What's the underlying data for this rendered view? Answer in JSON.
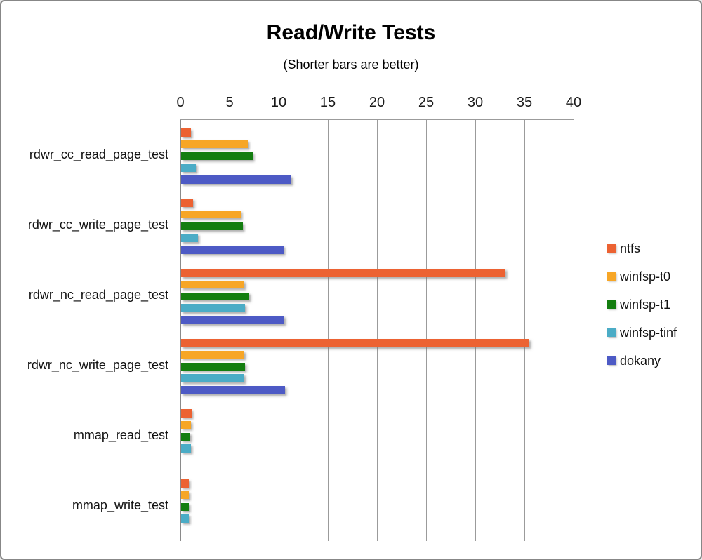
{
  "window": {
    "background": "#ffffff",
    "border_color": "#878787"
  },
  "chart_data": {
    "type": "bar",
    "orientation": "horizontal",
    "title": "Read/Write Tests",
    "subtitle": "(Shorter bars are better)",
    "xlabel": "",
    "ylabel": "",
    "xlim": [
      0,
      40
    ],
    "xticks": [
      0,
      5,
      10,
      15,
      20,
      25,
      30,
      35,
      40
    ],
    "grid": "vertical",
    "grid_color": "#9b9b9b",
    "legend_position": "right",
    "categories": [
      "rdwr_cc_read_page_test",
      "rdwr_cc_write_page_test",
      "rdwr_nc_read_page_test",
      "rdwr_nc_write_page_test",
      "mmap_read_test",
      "mmap_write_test"
    ],
    "series": [
      {
        "name": "ntfs",
        "color": "#EC6232",
        "values": [
          1.0,
          1.2,
          33.0,
          35.4,
          1.05,
          0.8
        ]
      },
      {
        "name": "winfsp-t0",
        "color": "#F7A626",
        "values": [
          6.8,
          6.1,
          6.4,
          6.4,
          1.0,
          0.8
        ]
      },
      {
        "name": "winfsp-t1",
        "color": "#147E10",
        "values": [
          7.3,
          6.3,
          6.9,
          6.5,
          0.9,
          0.75
        ]
      },
      {
        "name": "winfsp-tinf",
        "color": "#4BACC6",
        "values": [
          1.5,
          1.7,
          6.5,
          6.4,
          1.0,
          0.8
        ]
      },
      {
        "name": "dokany",
        "color": "#4D5AC5",
        "values": [
          11.2,
          10.4,
          10.5,
          10.6,
          null,
          null
        ]
      }
    ]
  }
}
